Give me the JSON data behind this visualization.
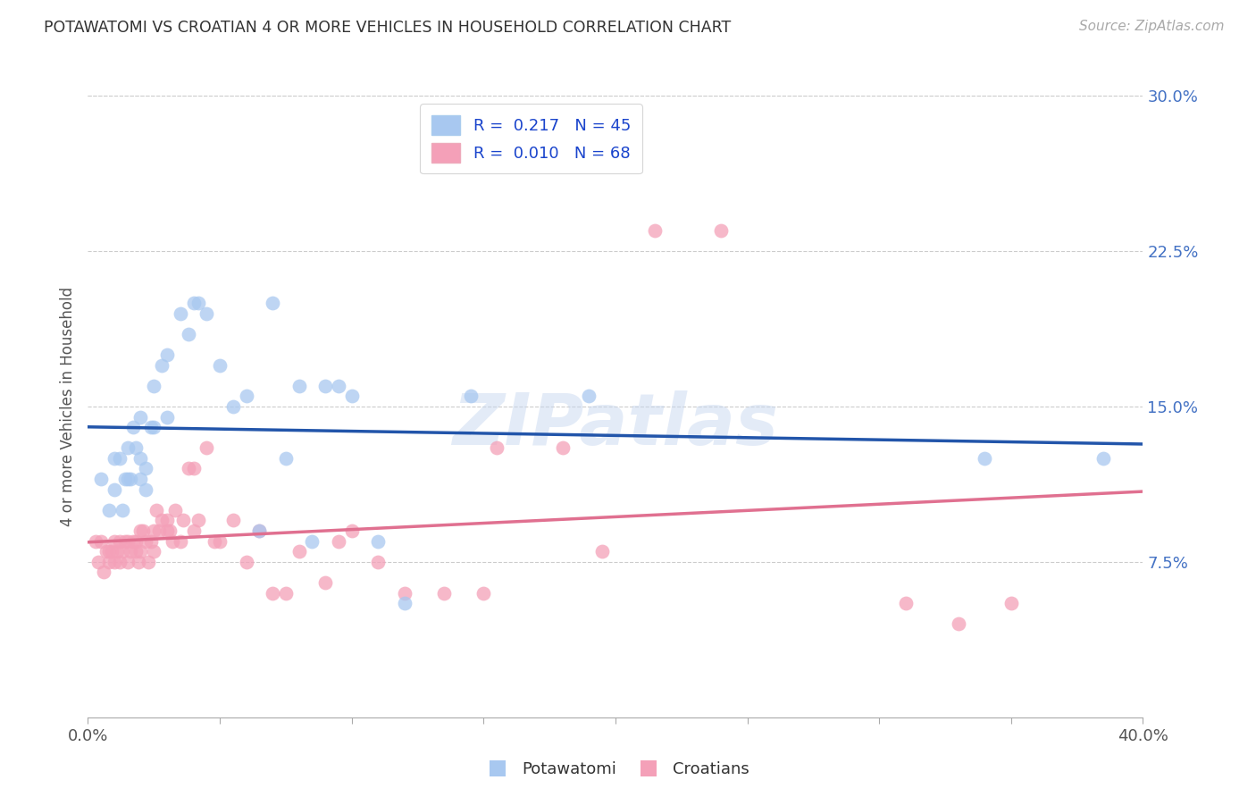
{
  "title": "POTAWATOMI VS CROATIAN 4 OR MORE VEHICLES IN HOUSEHOLD CORRELATION CHART",
  "source": "Source: ZipAtlas.com",
  "ylabel": "4 or more Vehicles in Household",
  "xmin": 0.0,
  "xmax": 0.4,
  "ymin": 0.0,
  "ymax": 0.3,
  "xtick_ends": [
    "0.0%",
    "40.0%"
  ],
  "ytick_vals": [
    0.075,
    0.15,
    0.225,
    0.3
  ],
  "ytick_labels": [
    "7.5%",
    "15.0%",
    "22.5%",
    "30.0%"
  ],
  "color_blue": "#a8c8f0",
  "color_pink": "#f4a0b8",
  "line_blue": "#2255aa",
  "line_pink": "#e07090",
  "watermark": "ZIPatlas",
  "potawatomi_x": [
    0.005,
    0.008,
    0.01,
    0.01,
    0.012,
    0.013,
    0.014,
    0.015,
    0.015,
    0.016,
    0.017,
    0.018,
    0.02,
    0.02,
    0.02,
    0.022,
    0.022,
    0.024,
    0.025,
    0.025,
    0.028,
    0.03,
    0.03,
    0.035,
    0.038,
    0.04,
    0.042,
    0.045,
    0.05,
    0.055,
    0.06,
    0.065,
    0.07,
    0.075,
    0.08,
    0.085,
    0.09,
    0.095,
    0.1,
    0.11,
    0.12,
    0.145,
    0.19,
    0.34,
    0.385
  ],
  "potawatomi_y": [
    0.115,
    0.1,
    0.125,
    0.11,
    0.125,
    0.1,
    0.115,
    0.115,
    0.13,
    0.115,
    0.14,
    0.13,
    0.145,
    0.125,
    0.115,
    0.12,
    0.11,
    0.14,
    0.16,
    0.14,
    0.17,
    0.175,
    0.145,
    0.195,
    0.185,
    0.2,
    0.2,
    0.195,
    0.17,
    0.15,
    0.155,
    0.09,
    0.2,
    0.125,
    0.16,
    0.085,
    0.16,
    0.16,
    0.155,
    0.085,
    0.055,
    0.155,
    0.155,
    0.125,
    0.125
  ],
  "croatian_x": [
    0.003,
    0.004,
    0.005,
    0.006,
    0.007,
    0.008,
    0.008,
    0.009,
    0.01,
    0.01,
    0.011,
    0.012,
    0.012,
    0.013,
    0.014,
    0.015,
    0.015,
    0.016,
    0.017,
    0.018,
    0.018,
    0.019,
    0.02,
    0.02,
    0.021,
    0.022,
    0.023,
    0.024,
    0.025,
    0.025,
    0.026,
    0.027,
    0.028,
    0.03,
    0.03,
    0.031,
    0.032,
    0.033,
    0.035,
    0.036,
    0.038,
    0.04,
    0.04,
    0.042,
    0.045,
    0.048,
    0.05,
    0.055,
    0.06,
    0.065,
    0.07,
    0.075,
    0.08,
    0.09,
    0.095,
    0.1,
    0.11,
    0.12,
    0.135,
    0.15,
    0.155,
    0.18,
    0.195,
    0.215,
    0.24,
    0.31,
    0.33,
    0.35
  ],
  "croatian_y": [
    0.085,
    0.075,
    0.085,
    0.07,
    0.08,
    0.08,
    0.075,
    0.08,
    0.085,
    0.075,
    0.08,
    0.085,
    0.075,
    0.08,
    0.085,
    0.085,
    0.075,
    0.08,
    0.085,
    0.08,
    0.085,
    0.075,
    0.09,
    0.08,
    0.09,
    0.085,
    0.075,
    0.085,
    0.09,
    0.08,
    0.1,
    0.09,
    0.095,
    0.09,
    0.095,
    0.09,
    0.085,
    0.1,
    0.085,
    0.095,
    0.12,
    0.09,
    0.12,
    0.095,
    0.13,
    0.085,
    0.085,
    0.095,
    0.075,
    0.09,
    0.06,
    0.06,
    0.08,
    0.065,
    0.085,
    0.09,
    0.075,
    0.06,
    0.06,
    0.06,
    0.13,
    0.13,
    0.08,
    0.235,
    0.235,
    0.055,
    0.045,
    0.055
  ]
}
